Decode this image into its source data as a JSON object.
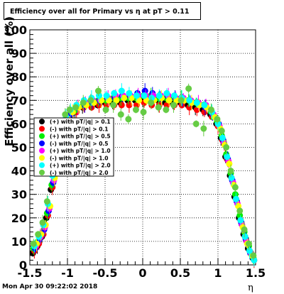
{
  "chart_data": {
    "type": "scatter",
    "title": "Efficiency over all for Primary vs   η at pT > 0.11",
    "xlabel": "η",
    "ylabel": "Efficiency over all (%)",
    "xlim": [
      -1.5,
      1.5
    ],
    "ylim": [
      0,
      100
    ],
    "x_ticks": [
      "-1.5",
      "-1",
      "-0.5",
      "0",
      "0.5",
      "1",
      "1.5"
    ],
    "y_ticks": [
      "0",
      "10",
      "20",
      "30",
      "40",
      "50",
      "60",
      "70",
      "80",
      "90",
      "100"
    ],
    "grid": true,
    "legend_position": "left-middle",
    "series": [
      {
        "name": "(+) with pT/|q| > 0.1",
        "color": "#000000",
        "marker": "circle",
        "x": [
          -1.46,
          -1.4,
          -1.34,
          -1.28,
          -1.22,
          -1.16,
          -1.1,
          -1.04,
          -0.98,
          -0.9,
          -0.8,
          -0.7,
          -0.6,
          -0.5,
          -0.4,
          -0.3,
          -0.2,
          -0.1,
          0.0,
          0.1,
          0.2,
          0.3,
          0.4,
          0.5,
          0.6,
          0.7,
          0.8,
          0.9,
          0.98,
          1.04,
          1.1,
          1.16,
          1.22,
          1.28,
          1.34,
          1.4,
          1.46
        ],
        "y": [
          5,
          8,
          12,
          20,
          32,
          42,
          51,
          58,
          62,
          65,
          67,
          68,
          68,
          69,
          69,
          69,
          70,
          70,
          70,
          70,
          70,
          69,
          69,
          69,
          68,
          67,
          66,
          64,
          60,
          54,
          46,
          38,
          29,
          20,
          13,
          7,
          3
        ]
      },
      {
        "name": "(-) with pT/|q| > 0.1",
        "color": "#ff0000",
        "marker": "circle",
        "x": [
          -1.44,
          -1.38,
          -1.32,
          -1.26,
          -1.2,
          -1.14,
          -1.08,
          -1.02,
          -0.96,
          -0.88,
          -0.78,
          -0.68,
          -0.58,
          -0.48,
          -0.38,
          -0.28,
          -0.18,
          -0.08,
          0.02,
          0.12,
          0.22,
          0.32,
          0.42,
          0.52,
          0.62,
          0.72,
          0.82,
          0.92,
          1.0,
          1.06,
          1.12,
          1.18,
          1.24,
          1.3,
          1.36,
          1.42,
          1.48
        ],
        "y": [
          6,
          9,
          13,
          21,
          33,
          43,
          52,
          59,
          63,
          65,
          67,
          67,
          68,
          68,
          68,
          68,
          68,
          68,
          69,
          68,
          68,
          68,
          68,
          68,
          67,
          66,
          65,
          63,
          59,
          53,
          45,
          37,
          28,
          19,
          12,
          6,
          2
        ]
      },
      {
        "name": "(+) with pT/|q| > 0.5",
        "color": "#00ee00",
        "marker": "circle",
        "x": [
          -1.45,
          -1.39,
          -1.33,
          -1.27,
          -1.21,
          -1.15,
          -1.09,
          -1.03,
          -0.97,
          -0.89,
          -0.79,
          -0.69,
          -0.59,
          -0.49,
          -0.39,
          -0.29,
          -0.19,
          -0.09,
          0.01,
          0.11,
          0.21,
          0.31,
          0.41,
          0.51,
          0.61,
          0.71,
          0.81,
          0.91,
          0.99,
          1.05,
          1.11,
          1.17,
          1.23,
          1.29,
          1.35,
          1.41,
          1.47
        ],
        "y": [
          7,
          10,
          14,
          22,
          34,
          44,
          53,
          60,
          64,
          66,
          68,
          69,
          70,
          70,
          71,
          71,
          71,
          71,
          72,
          72,
          71,
          71,
          71,
          71,
          70,
          69,
          68,
          65,
          61,
          55,
          47,
          39,
          30,
          21,
          14,
          8,
          3
        ]
      },
      {
        "name": "(-) with pT/|q| > 0.5",
        "color": "#0000ff",
        "marker": "circle",
        "x": [
          -1.43,
          -1.37,
          -1.31,
          -1.25,
          -1.19,
          -1.13,
          -1.07,
          -1.01,
          -0.95,
          -0.87,
          -0.77,
          -0.67,
          -0.57,
          -0.47,
          -0.37,
          -0.27,
          -0.17,
          -0.07,
          0.03,
          0.13,
          0.23,
          0.33,
          0.43,
          0.53,
          0.63,
          0.73,
          0.83,
          0.93,
          1.01,
          1.07,
          1.13,
          1.19,
          1.25,
          1.31,
          1.37,
          1.43
        ],
        "y": [
          7,
          11,
          15,
          23,
          35,
          45,
          54,
          60,
          64,
          67,
          68,
          69,
          70,
          71,
          71,
          72,
          72,
          73,
          74,
          73,
          72,
          72,
          71,
          70,
          70,
          69,
          67,
          64,
          60,
          53,
          45,
          36,
          27,
          18,
          11,
          5
        ]
      },
      {
        "name": "(+) with pT/|q| > 1.0",
        "color": "#ff00ff",
        "marker": "circle",
        "x": [
          -1.42,
          -1.36,
          -1.3,
          -1.24,
          -1.18,
          -1.12,
          -1.06,
          -1.0,
          -0.94,
          -0.86,
          -0.76,
          -0.66,
          -0.56,
          -0.46,
          -0.36,
          -0.26,
          -0.16,
          -0.06,
          0.04,
          0.14,
          0.24,
          0.34,
          0.44,
          0.54,
          0.64,
          0.74,
          0.84,
          0.94,
          1.02,
          1.08,
          1.14,
          1.2,
          1.26,
          1.32,
          1.38,
          1.44
        ],
        "y": [
          8,
          12,
          16,
          24,
          36,
          46,
          55,
          61,
          65,
          67,
          69,
          70,
          70,
          71,
          72,
          72,
          72,
          72,
          72,
          72,
          72,
          72,
          71,
          71,
          70,
          69,
          68,
          64,
          59,
          52,
          44,
          35,
          26,
          17,
          10,
          5
        ]
      },
      {
        "name": "(-) with pT/|q| > 1.0",
        "color": "#ffff00",
        "marker": "circle",
        "x": [
          -1.41,
          -1.35,
          -1.29,
          -1.23,
          -1.17,
          -1.11,
          -1.05,
          -0.99,
          -0.93,
          -0.85,
          -0.75,
          -0.65,
          -0.55,
          -0.45,
          -0.35,
          -0.25,
          -0.15,
          -0.05,
          0.05,
          0.15,
          0.25,
          0.35,
          0.45,
          0.55,
          0.65,
          0.75,
          0.85,
          0.95,
          1.03,
          1.09,
          1.15,
          1.21,
          1.27,
          1.33,
          1.39,
          1.45
        ],
        "y": [
          9,
          13,
          17,
          25,
          37,
          47,
          55,
          62,
          65,
          67,
          68,
          69,
          70,
          70,
          70,
          71,
          71,
          70,
          70,
          70,
          71,
          70,
          70,
          70,
          69,
          68,
          67,
          63,
          58,
          51,
          43,
          34,
          25,
          16,
          9,
          4
        ]
      },
      {
        "name": "(+) with pT/|q| > 2.0",
        "color": "#00ffff",
        "marker": "circle",
        "x": [
          -1.44,
          -1.38,
          -1.32,
          -1.26,
          -1.2,
          -1.14,
          -1.08,
          -1.02,
          -0.96,
          -0.88,
          -0.78,
          -0.68,
          -0.58,
          -0.48,
          -0.38,
          -0.28,
          -0.18,
          -0.08,
          0.02,
          0.12,
          0.22,
          0.32,
          0.42,
          0.52,
          0.62,
          0.72,
          0.82,
          0.92,
          1.0,
          1.06,
          1.12,
          1.18,
          1.24,
          1.3,
          1.36,
          1.42,
          1.48
        ],
        "y": [
          8,
          12,
          17,
          26,
          38,
          48,
          57,
          63,
          66,
          68,
          70,
          71,
          72,
          72,
          73,
          74,
          73,
          72,
          72,
          71,
          72,
          73,
          72,
          71,
          70,
          69,
          68,
          65,
          60,
          54,
          46,
          37,
          28,
          19,
          12,
          6,
          2
        ]
      },
      {
        "name": "(-) with pT/|q| > 2.0",
        "color": "#66cc44",
        "marker": "circle",
        "x": [
          -1.45,
          -1.39,
          -1.33,
          -1.27,
          -1.21,
          -1.15,
          -1.09,
          -1.03,
          -0.97,
          -0.89,
          -0.79,
          -0.69,
          -0.59,
          -0.49,
          -0.39,
          -0.29,
          -0.19,
          -0.09,
          0.01,
          0.11,
          0.21,
          0.31,
          0.41,
          0.51,
          0.61,
          0.71,
          0.81,
          0.91,
          0.99,
          1.05,
          1.11,
          1.17,
          1.23,
          1.29,
          1.35,
          1.41,
          1.47
        ],
        "y": [
          9,
          13,
          18,
          27,
          40,
          50,
          58,
          64,
          66,
          67,
          69,
          70,
          74,
          66,
          68,
          64,
          62,
          66,
          65,
          69,
          67,
          66,
          68,
          70,
          75,
          60,
          58,
          66,
          62,
          57,
          50,
          40,
          33,
          23,
          15,
          9,
          4
        ]
      }
    ]
  },
  "footer": {
    "timestamp": "Mon Apr 30 09:22:02 2018"
  }
}
